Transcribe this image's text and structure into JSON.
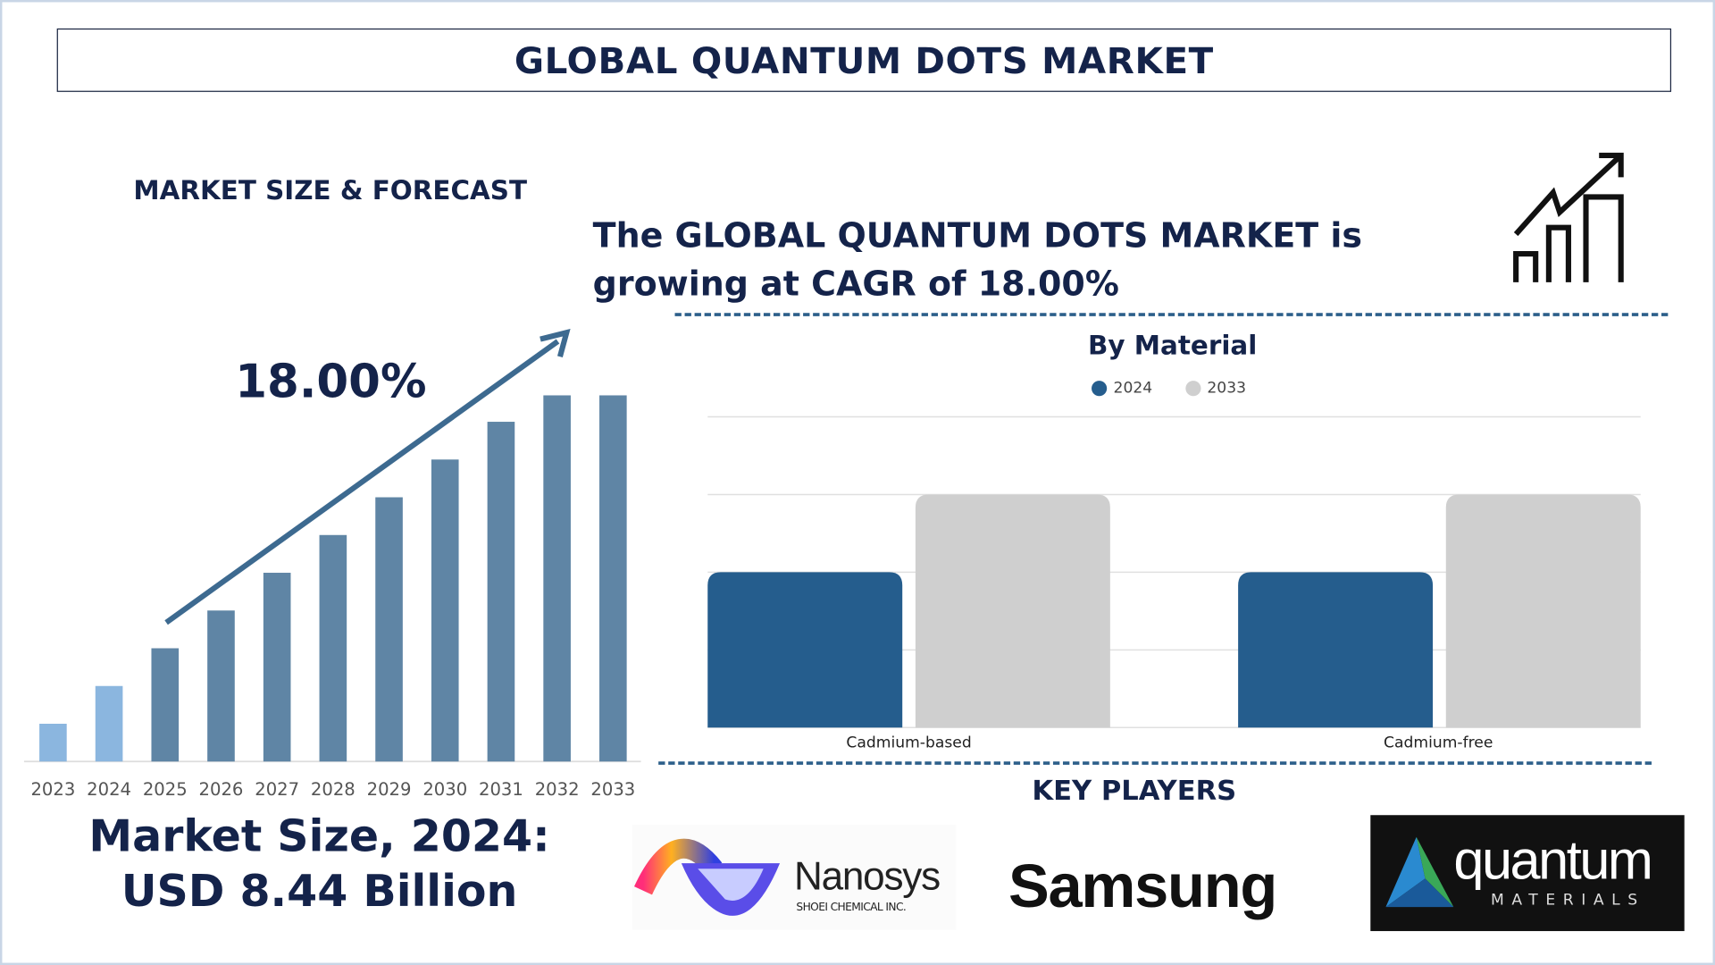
{
  "title": "GLOBAL QUANTUM DOTS MARKET",
  "left_panel": {
    "heading": "MARKET SIZE & FORECAST",
    "cagr_label": "18.00%",
    "market_size_line1": "Market Size, 2024:",
    "market_size_line2": "USD 8.44 Billion"
  },
  "headline": "The GLOBAL QUANTUM DOTS MARKET is growing at CAGR of 18.00%",
  "key_players": {
    "heading": "KEY PLAYERS",
    "logos": [
      "Nanosys",
      "SHOEI CHEMICAL INC.",
      "Samsung",
      "quantum",
      "MATERIALS"
    ]
  },
  "colors": {
    "navy": "#14234a",
    "bar_2024": "#255d8d",
    "bar_2033": "#cfcfcf",
    "forecast_bar": "#5f85a5",
    "history_bar": "#8bb6df",
    "arrow": "#3d6a90"
  },
  "chart_data": [
    {
      "type": "bar",
      "title": "",
      "categories": [
        "2023",
        "2024",
        "2025",
        "2026",
        "2027",
        "2028",
        "2029",
        "2030",
        "2031",
        "2032",
        "2033"
      ],
      "values": [
        1,
        2,
        3,
        4,
        5,
        6,
        7,
        8,
        9,
        9.7,
        9.7
      ],
      "note_values_relative": true,
      "grid": false,
      "trend_arrow": true
    },
    {
      "type": "bar",
      "title": "By Material",
      "categories": [
        "Cadmium-based",
        "Cadmium-free"
      ],
      "series": [
        {
          "name": "2024",
          "values": [
            2,
            2
          ]
        },
        {
          "name": "2033",
          "values": [
            3,
            3
          ]
        }
      ],
      "ylim": [
        0,
        4
      ],
      "grid": true,
      "legend": "top"
    }
  ]
}
